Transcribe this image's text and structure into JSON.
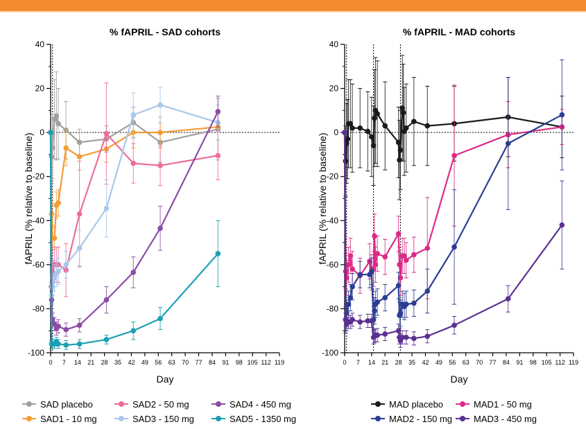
{
  "chart_data": [
    {
      "type": "line",
      "title": "% fAPRIL - SAD cohorts",
      "xlabel": "Day",
      "ylabel": "fAPRIL (% relative to baseline)",
      "xlim": [
        0,
        119
      ],
      "ylim": [
        -100,
        40
      ],
      "xticks": [
        0,
        7,
        14,
        21,
        28,
        35,
        42,
        49,
        56,
        63,
        70,
        77,
        84,
        91,
        98,
        105,
        112,
        119
      ],
      "yticks": [
        -100,
        -80,
        -60,
        -40,
        -20,
        0,
        20,
        40
      ],
      "reference_line_y": 0,
      "vlines_x": [
        1
      ],
      "legend_position": "bottom",
      "series": [
        {
          "name": "SAD placebo",
          "color": "#a0a0a0",
          "x": [
            0,
            0.5,
            1,
            2,
            3,
            4,
            8,
            15,
            29,
            43,
            57,
            87
          ],
          "y": [
            0,
            -11,
            -7,
            6,
            7.5,
            4,
            1,
            -4.5,
            -3,
            4.5,
            -4.5,
            1.5
          ],
          "err": [
            0,
            12,
            14,
            18,
            20,
            16,
            13,
            6,
            6,
            7,
            9,
            14
          ]
        },
        {
          "name": "SAD1 - 10 mg",
          "color": "#f39c33",
          "x": [
            0,
            0.5,
            1,
            2,
            3,
            4,
            8,
            15,
            29,
            43,
            57,
            87
          ],
          "y": [
            0,
            -37,
            -48,
            -48,
            -33,
            -32,
            -7,
            -11,
            -7.5,
            0,
            0,
            2.5
          ],
          "err": [
            0,
            5,
            5,
            5,
            6,
            6,
            8,
            6,
            6,
            7,
            7,
            6
          ]
        },
        {
          "name": "SAD2 - 50 mg",
          "color": "#ee6c9a",
          "x": [
            0,
            0.5,
            1,
            2,
            3,
            4,
            8,
            15,
            29,
            43,
            57,
            87
          ],
          "y": [
            0,
            -70,
            -66,
            -60,
            -60,
            -60,
            -62.5,
            -37,
            -0.5,
            -14,
            -15,
            -10.5
          ],
          "err": [
            0,
            8,
            8,
            8,
            8,
            8,
            12,
            24,
            23,
            9,
            9,
            11
          ]
        },
        {
          "name": "SAD3 - 150 mg",
          "color": "#a8c8ea",
          "x": [
            0,
            0.5,
            1,
            2,
            3,
            4,
            8,
            15,
            29,
            43,
            57,
            87
          ],
          "y": [
            0,
            -74,
            -70,
            -66,
            -64,
            -63,
            -60,
            -52.5,
            -34.5,
            8,
            12.5,
            4.5
          ],
          "err": [
            0,
            6,
            6,
            6,
            6,
            6,
            6,
            8,
            13,
            10,
            8,
            8
          ]
        },
        {
          "name": "SAD4 - 450 mg",
          "color": "#8e4ba6",
          "x": [
            0,
            0.5,
            1,
            2,
            3,
            4,
            8,
            15,
            29,
            43,
            57,
            87
          ],
          "y": [
            0,
            -76,
            -85,
            -87,
            -89,
            -88,
            -89.5,
            -87.5,
            -76,
            -63.5,
            -43.5,
            9.5
          ],
          "err": [
            0,
            4,
            3,
            3,
            3,
            3,
            3,
            3,
            6,
            7,
            10,
            7
          ]
        },
        {
          "name": "SAD5 - 1350 mg",
          "color": "#1ba0b2",
          "x": [
            0,
            0.5,
            1,
            2,
            3,
            4,
            8,
            15,
            29,
            43,
            57,
            87
          ],
          "y": [
            0,
            -96,
            -96,
            -96,
            -95,
            -96,
            -96.5,
            -96,
            -94,
            -90,
            -84.5,
            -55
          ],
          "err": [
            0,
            2,
            2,
            2,
            2,
            2,
            2,
            2,
            2,
            4,
            5,
            15
          ]
        }
      ]
    },
    {
      "type": "line",
      "title": "% fAPRIL - MAD cohorts",
      "xlabel": "Day",
      "ylabel": "fAPRIL (% relative to baseline)",
      "xlim": [
        0,
        119
      ],
      "ylim": [
        -100,
        40
      ],
      "xticks": [
        0,
        7,
        14,
        21,
        28,
        35,
        42,
        49,
        56,
        63,
        70,
        77,
        84,
        91,
        98,
        105,
        112,
        119
      ],
      "yticks": [
        -100,
        -80,
        -60,
        -40,
        -20,
        0,
        20,
        40
      ],
      "reference_line_y": 0,
      "vlines_x": [
        1,
        15,
        29
      ],
      "legend_position": "bottom",
      "series": [
        {
          "name": "MAD placebo",
          "color": "#1a1a1a",
          "x": [
            0,
            0.5,
            1,
            1.5,
            2,
            3,
            4,
            8,
            12,
            14,
            15,
            15.5,
            16,
            17,
            21,
            28,
            28.5,
            29,
            30,
            30.5,
            31,
            32,
            36,
            43,
            57,
            85,
            113
          ],
          "y": [
            0,
            -13,
            -5,
            -3,
            4,
            4,
            2,
            2,
            0.5,
            -2,
            -6,
            6.5,
            10,
            8.5,
            3,
            -4.5,
            -12.5,
            -8,
            11,
            9,
            0.5,
            2,
            5,
            3,
            4,
            7,
            2.5
          ],
          "err": [
            0,
            16,
            18,
            18,
            20,
            20,
            20,
            18,
            18,
            18,
            18,
            22,
            24,
            24,
            20,
            16,
            18,
            18,
            24,
            22,
            20,
            20,
            20,
            18,
            17,
            18,
            14
          ]
        },
        {
          "name": "MAD1 - 50 mg",
          "color": "#dc2a86",
          "x": [
            0,
            0.5,
            1,
            2,
            3,
            4,
            8,
            13,
            14,
            15,
            15.5,
            16,
            17,
            21,
            28,
            28.5,
            29,
            30,
            31,
            32,
            36,
            43,
            57,
            85,
            113
          ],
          "y": [
            0,
            -63,
            -66,
            -60,
            -56,
            -62,
            -65,
            -58.5,
            -63.5,
            -62,
            -47,
            -60,
            -55,
            -56.5,
            -46,
            -60,
            -66,
            -56,
            -56,
            -58,
            -55.5,
            -52.5,
            -10.5,
            -1,
            2.5
          ],
          "err": [
            0,
            8,
            8,
            8,
            8,
            8,
            8,
            8,
            8,
            8,
            10,
            8,
            8,
            8,
            8,
            8,
            8,
            8,
            8,
            8,
            8,
            23,
            32,
            15,
            8
          ]
        },
        {
          "name": "MAD2 - 150 mg",
          "color": "#2b3d92",
          "x": [
            0,
            0.5,
            1,
            2,
            3,
            4,
            8,
            13,
            14,
            15,
            15.5,
            16,
            17,
            21,
            28,
            28.5,
            29,
            30,
            31,
            32,
            36,
            43,
            57,
            85,
            113
          ],
          "y": [
            0,
            -85,
            -82,
            -78,
            -75,
            -70,
            -64.5,
            -64.5,
            -63,
            -85,
            -81,
            -78,
            -77,
            -75,
            -69.5,
            -83,
            -82,
            -78,
            -79,
            -78,
            -77.5,
            -72,
            -52,
            -5,
            8
          ],
          "err": [
            0,
            6,
            6,
            6,
            6,
            6,
            6,
            6,
            6,
            6,
            6,
            6,
            6,
            6,
            6,
            6,
            6,
            6,
            6,
            6,
            6,
            10,
            26,
            30,
            25
          ]
        },
        {
          "name": "MAD3 - 450 mg",
          "color": "#5a3090",
          "x": [
            0,
            0.5,
            1,
            2,
            3,
            4,
            8,
            12,
            14,
            15,
            15.5,
            16,
            17,
            21,
            28,
            28.5,
            29,
            30,
            32,
            36,
            43,
            57,
            85,
            113
          ],
          "y": [
            0,
            -85,
            -87,
            -86,
            -86,
            -85,
            -86,
            -85.5,
            -85.5,
            -93,
            -92.5,
            -92,
            -92,
            -91.5,
            -90,
            -93,
            -94.5,
            -93,
            -93,
            -93.5,
            -92.5,
            -87.5,
            -75.5,
            -42
          ],
          "err": [
            0,
            3,
            3,
            3,
            3,
            3,
            3,
            3,
            3,
            3,
            3,
            3,
            3,
            3,
            3,
            3,
            3,
            3,
            3,
            3,
            3,
            4,
            6,
            20
          ]
        }
      ]
    }
  ]
}
